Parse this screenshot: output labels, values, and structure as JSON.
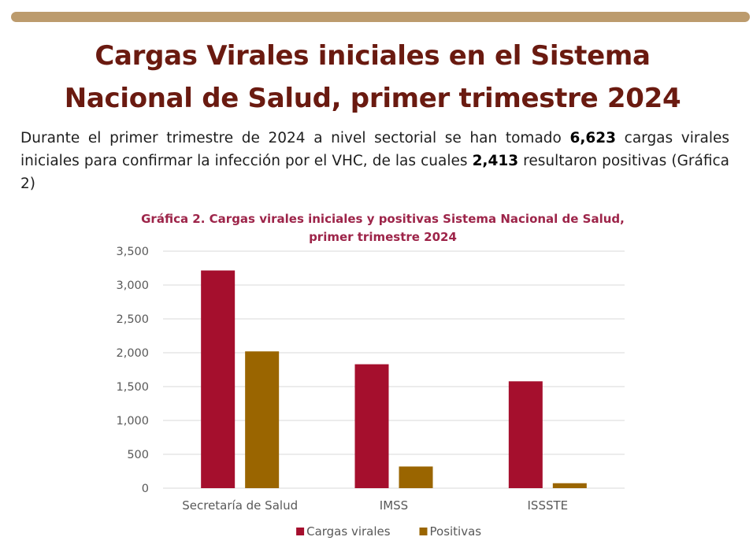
{
  "colors": {
    "top_bar": "#bc9b6d",
    "title": "#6a1a10",
    "chart_title": "#9d2449",
    "grid": "#d9d9d9",
    "series": [
      "#a50f2d",
      "#9a6500"
    ]
  },
  "header": {
    "title_line1": "Cargas Virales iniciales en el Sistema",
    "title_line2": "Nacional de Salud, primer trimestre 2024"
  },
  "intro": {
    "part1": "Durante el primer trimestre de 2024 a nivel sectorial se han tomado ",
    "total": "6,623",
    "part2": " cargas virales iniciales para confirmar la infección por el VHC, de las cuales ",
    "positive": "2,413",
    "part3": " resultaron positivas (Gráfica 2)"
  },
  "chart_data": {
    "type": "bar",
    "title": "Gráfica 2. Cargas virales iniciales y positivas Sistema Nacional de Salud, primer trimestre 2024",
    "title_line1": "Gráfica 2. Cargas virales iniciales y positivas Sistema Nacional de Salud,",
    "title_line2": "primer trimestre 2024",
    "categories": [
      "Secretaría de Salud",
      "IMSS",
      "ISSSTE"
    ],
    "series": [
      {
        "name": "Cargas virales",
        "values": [
          3215,
          1830,
          1578
        ]
      },
      {
        "name": "Positivas",
        "values": [
          2020,
          320,
          73
        ]
      }
    ],
    "ylim": [
      0,
      3500
    ],
    "yticks": [
      0,
      500,
      1000,
      1500,
      2000,
      2500,
      3000,
      3500
    ],
    "ytick_labels": [
      "0",
      "500",
      "1,000",
      "1,500",
      "2,000",
      "2,500",
      "3,000",
      "3,500"
    ],
    "grid": true,
    "legend": "bottom-center",
    "xlabel": "",
    "ylabel": ""
  }
}
